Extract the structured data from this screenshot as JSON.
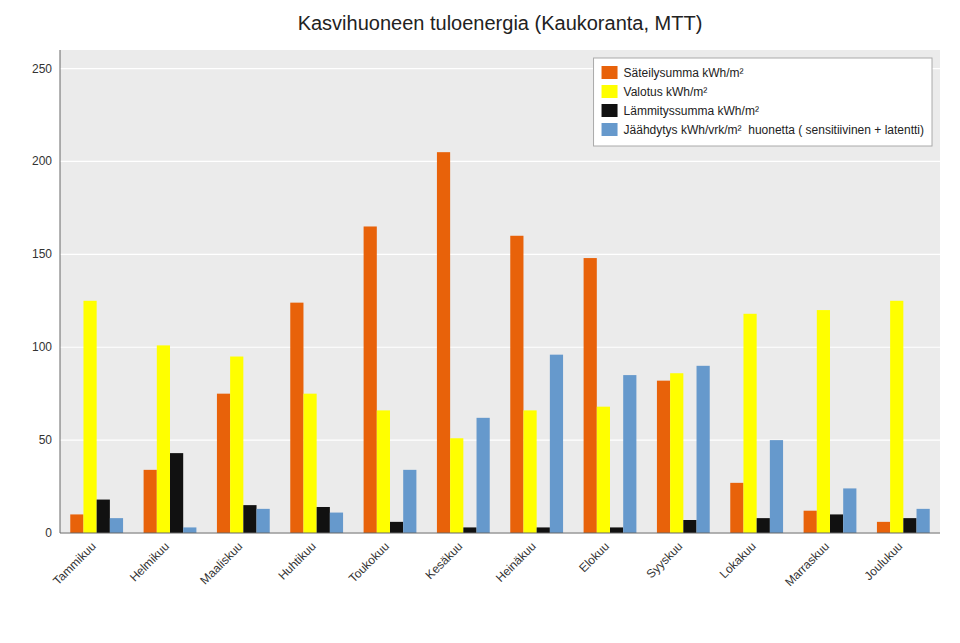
{
  "chart_data": {
    "type": "bar",
    "title": "Kasvihuoneen tuloenergia (Kaukoranta, MTT)",
    "categories": [
      "Tammikuu",
      "Helmikuu",
      "Maaliskuu",
      "Huhtikuu",
      "Toukokuu",
      "Kesäkuu",
      "Heinäkuu",
      "Elokuu",
      "Syyskuu",
      "Lokakuu",
      "Marraskuu",
      "Joulukuu"
    ],
    "series": [
      {
        "name": "Säteilysumma kWh/m²",
        "color": "#E8620A",
        "values": [
          10,
          34,
          75,
          124,
          165,
          205,
          160,
          148,
          82,
          27,
          12,
          6
        ]
      },
      {
        "name": "Valotus kWh/m²",
        "color": "#FFFF00",
        "values": [
          125,
          101,
          95,
          75,
          66,
          51,
          66,
          68,
          86,
          118,
          120,
          125
        ]
      },
      {
        "name": "Lämmityssumma kWh/m²",
        "color": "#111111",
        "values": [
          18,
          43,
          15,
          14,
          6,
          3,
          3,
          3,
          7,
          8,
          10,
          8
        ]
      },
      {
        "name": "Jäähdytys kWh/vrk/m²  huonetta ( sensitiivinen + latentti)",
        "color": "#6699CC",
        "values": [
          8,
          3,
          13,
          11,
          34,
          62,
          96,
          85,
          90,
          50,
          24,
          13
        ]
      }
    ],
    "ylim": [
      0,
      260
    ],
    "yticks": [
      0,
      50,
      100,
      150,
      200,
      250
    ],
    "grid": true,
    "legend": "upper right"
  }
}
